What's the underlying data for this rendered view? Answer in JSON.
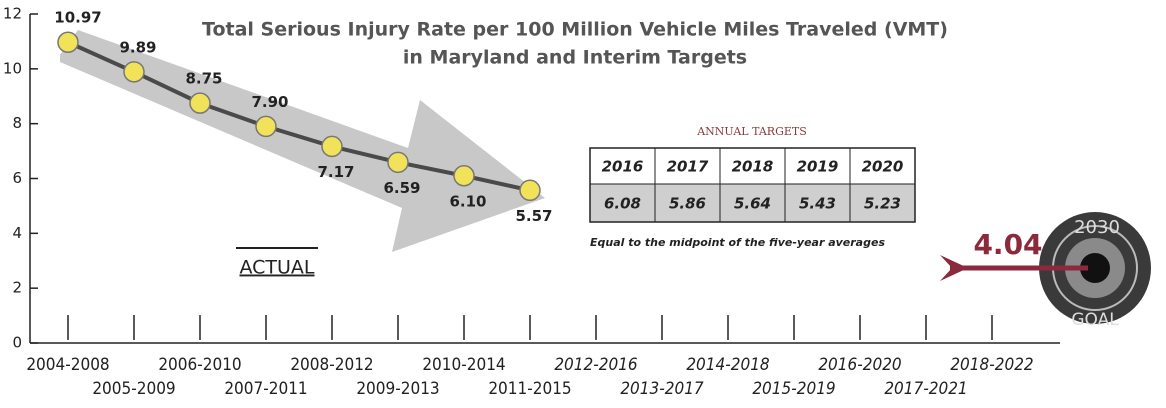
{
  "chart_data": {
    "type": "line",
    "title": [
      "Total Serious Injury Rate per 100 Million Vehicle Miles Traveled (VMT)",
      "in Maryland and Interim Targets"
    ],
    "categories": [
      "2004-2008",
      "2005-2009",
      "2006-2010",
      "2007-2011",
      "2008-2012",
      "2009-2013",
      "2010-2014",
      "2011-2015",
      "2012-2016",
      "2013-2017",
      "2014-2018",
      "2015-2019",
      "2016-2020",
      "2017-2021",
      "2018-2022"
    ],
    "series": [
      {
        "name": "ACTUAL",
        "color": "#4a4a4a",
        "values": [
          10.97,
          9.89,
          8.75,
          7.9,
          7.17,
          6.59,
          6.1,
          5.57,
          null,
          null,
          null,
          null,
          null,
          null,
          null
        ],
        "value_labels": [
          "10.97",
          "9.89",
          "8.75",
          "7.90",
          "7.17",
          "6.59",
          "6.10",
          "5.57",
          null,
          null,
          null,
          null,
          null,
          null,
          null
        ]
      }
    ],
    "marker_color": "#f2e25a",
    "ylim": [
      0,
      12
    ],
    "yticks": [
      0,
      2,
      4,
      6,
      8,
      10,
      12
    ],
    "annual_targets": {
      "title": "ANNUAL TARGETS",
      "years": [
        2016,
        2017,
        2018,
        2019,
        2020
      ],
      "values": [
        6.08,
        5.86,
        5.64,
        5.43,
        5.23
      ],
      "note": "Equal to the midpoint of the five-year averages"
    },
    "goal": {
      "value": 4.04,
      "year": 2030,
      "label": "GOAL"
    }
  }
}
